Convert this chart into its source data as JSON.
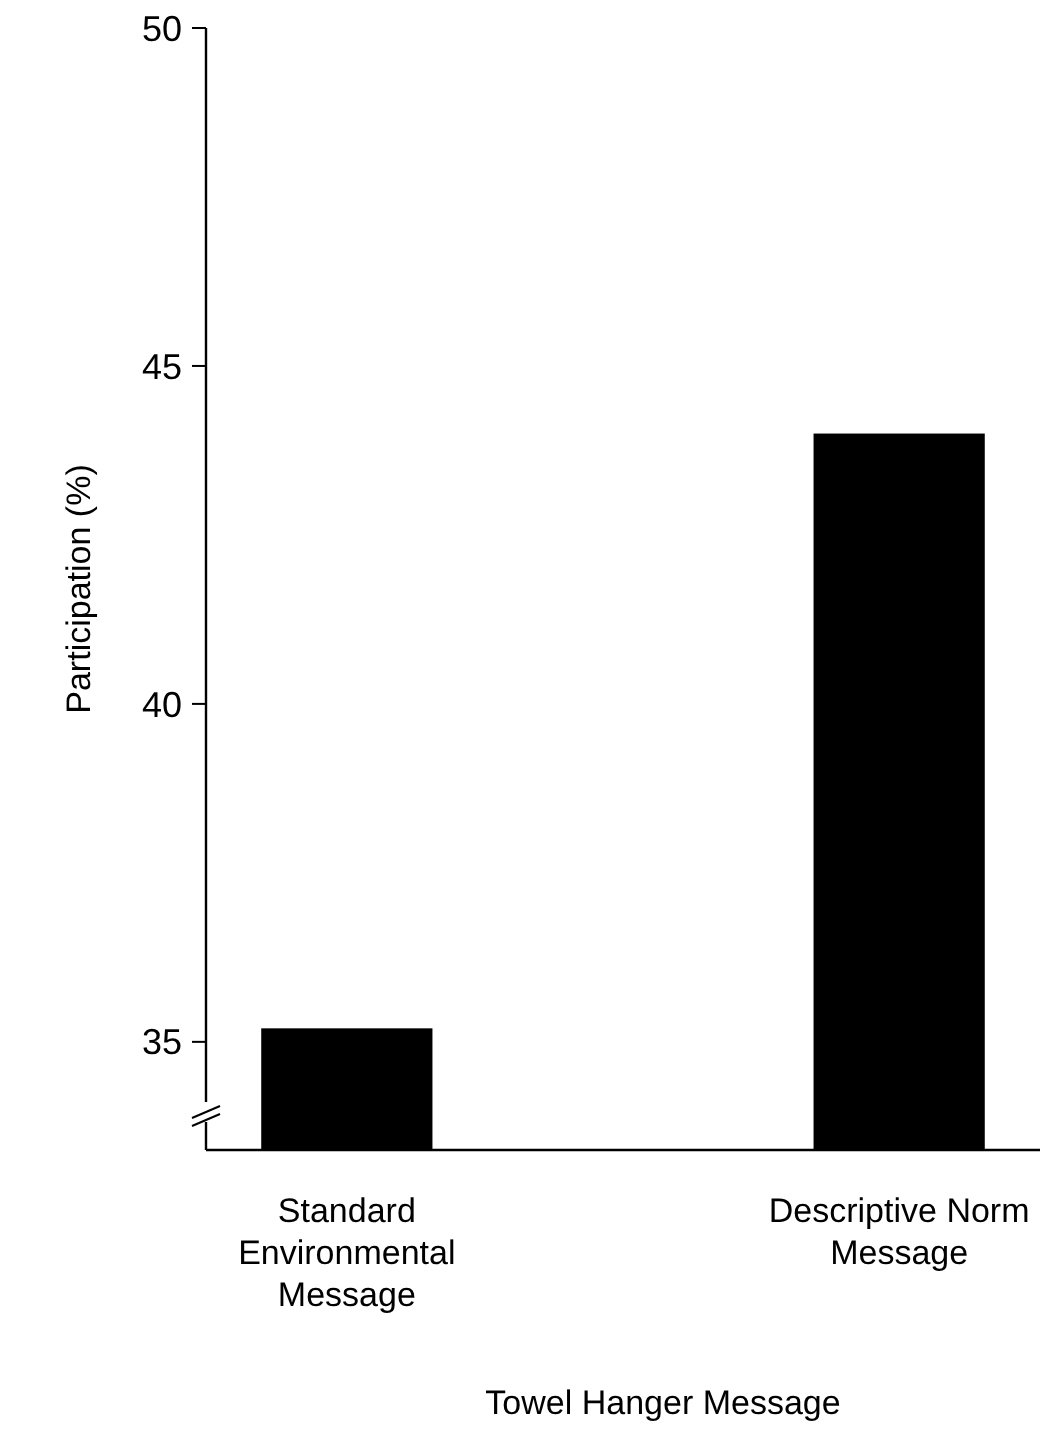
{
  "chart_data": {
    "type": "bar",
    "ylabel": "Participation (%)",
    "xlabel": "Towel Hanger Message",
    "categories": [
      "Standard\nEnvironmental\nMessage",
      "Descriptive Norm\nMessage"
    ],
    "values": [
      35.2,
      44.0
    ],
    "color": "#000000",
    "ylim": [
      33.4,
      50
    ],
    "yticks": [
      35,
      40,
      45,
      50
    ],
    "grid": false
  }
}
